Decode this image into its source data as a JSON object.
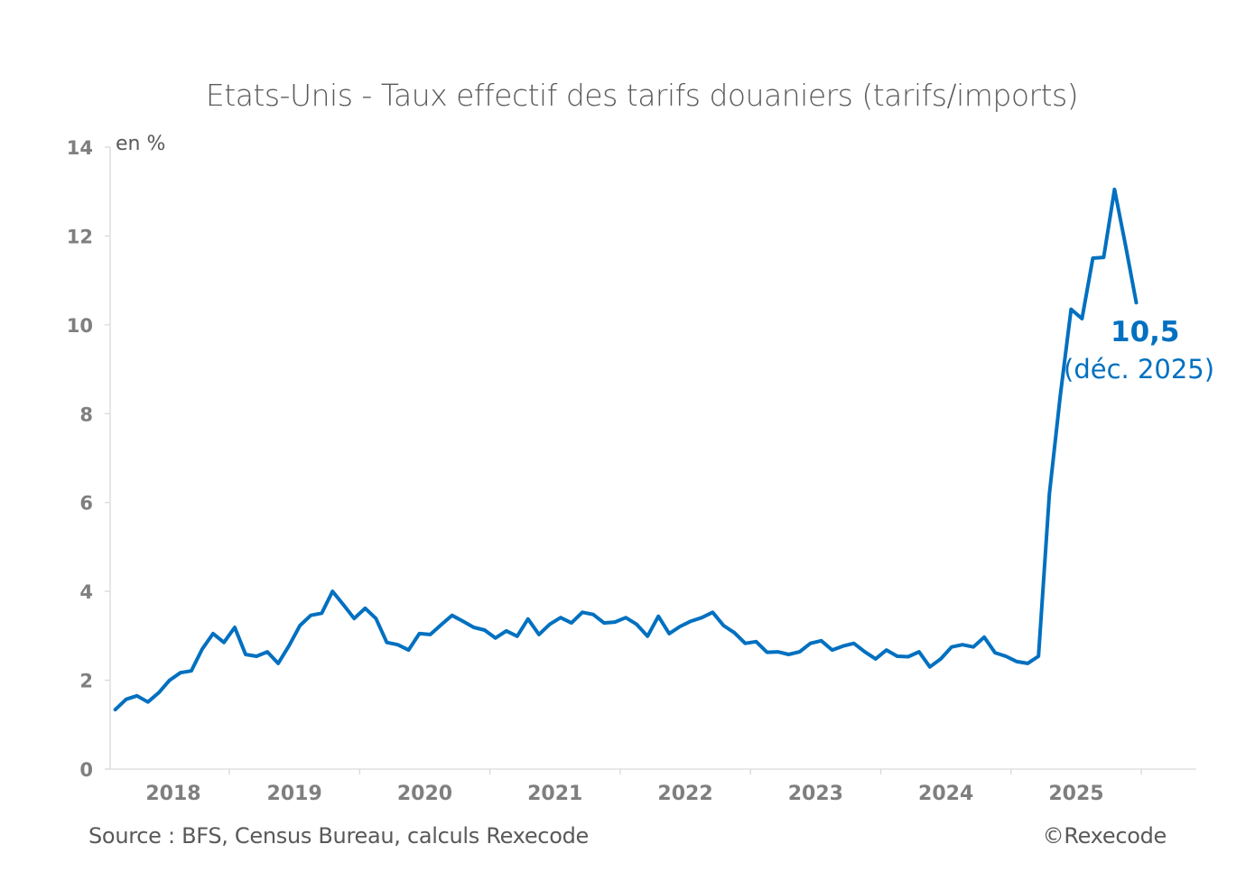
{
  "chart_data": {
    "type": "line",
    "title": "Etats-Unis - Taux effectif des tarifs douaniers (tarifs/imports)",
    "ylabel": "en %",
    "xlabel": "",
    "ylim": [
      0,
      14
    ],
    "yticks": [
      0,
      2,
      4,
      6,
      8,
      10,
      12,
      14
    ],
    "xtick_labels": [
      "2018",
      "2019",
      "2020",
      "2021",
      "2022",
      "2023",
      "2024",
      "2025"
    ],
    "grid": false,
    "legend": null,
    "frequency": "monthly",
    "x_start": "2018-02",
    "x_end": "2025-12",
    "series": [
      {
        "name": "Taux effectif des tarifs douaniers",
        "color": "#0070C0",
        "values": [
          1.34,
          1.57,
          1.65,
          1.51,
          1.72,
          2.0,
          2.17,
          2.21,
          2.7,
          3.05,
          2.85,
          3.19,
          2.58,
          2.54,
          2.64,
          2.38,
          2.78,
          3.23,
          3.46,
          3.51,
          4.0,
          3.7,
          3.39,
          3.62,
          3.39,
          2.85,
          2.8,
          2.68,
          3.05,
          3.03,
          3.25,
          3.46,
          3.33,
          3.19,
          3.13,
          2.95,
          3.11,
          2.99,
          3.38,
          3.03,
          3.26,
          3.41,
          3.29,
          3.53,
          3.48,
          3.29,
          3.31,
          3.41,
          3.26,
          2.99,
          3.44,
          3.05,
          3.21,
          3.33,
          3.41,
          3.53,
          3.23,
          3.07,
          2.83,
          2.87,
          2.63,
          2.64,
          2.58,
          2.64,
          2.83,
          2.89,
          2.68,
          2.77,
          2.83,
          2.64,
          2.48,
          2.68,
          2.54,
          2.53,
          2.64,
          2.3,
          2.48,
          2.75,
          2.8,
          2.75,
          2.97,
          2.62,
          2.54,
          2.42,
          2.38,
          2.54,
          6.2,
          8.4,
          10.35,
          10.14,
          11.5,
          11.52,
          13.05,
          11.8,
          10.5
        ]
      }
    ],
    "annotations": [
      {
        "text": "10,5",
        "target": "last point"
      },
      {
        "text": "(déc. 2025)",
        "target": "last point"
      }
    ]
  },
  "labels": {
    "title": "Etats-Unis - Taux effectif des tarifs douaniers (tarifs/imports)",
    "unit": "en %",
    "annotation_value": "10,5",
    "annotation_date": "(déc. 2025)",
    "source": "Source : BFS, Census Bureau, calculs Rexecode",
    "copyright": "©Rexecode"
  },
  "colors": {
    "line": "#0070C0",
    "axis": "#d9d9d9",
    "tick_label": "#7f7f7f",
    "text": "#595959"
  }
}
